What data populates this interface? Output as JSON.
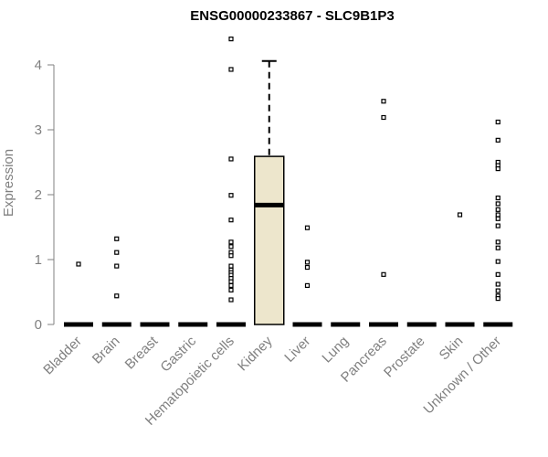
{
  "chart_data": {
    "type": "box",
    "title": "ENSG00000233867 - SLC9B1P3",
    "xlabel": "",
    "ylabel": "Expression",
    "ylim": [
      0,
      4.5
    ],
    "yticks": [
      0,
      1,
      2,
      3,
      4
    ],
    "grid": false,
    "categories": [
      "Bladder",
      "Brain",
      "Breast",
      "Gastric",
      "Hematopoietic cells",
      "Kidney",
      "Liver",
      "Lung",
      "Pancreas",
      "Prostate",
      "Skin",
      "Unknown / Other"
    ],
    "boxes": [
      {
        "category": "Bladder",
        "q1": 0,
        "median": 0,
        "q3": 0,
        "whisker_low": 0,
        "whisker_high": 0,
        "outliers": [
          0.93
        ]
      },
      {
        "category": "Brain",
        "q1": 0,
        "median": 0,
        "q3": 0,
        "whisker_low": 0,
        "whisker_high": 0,
        "outliers": [
          1.32,
          1.11,
          0.9,
          0.44
        ]
      },
      {
        "category": "Breast",
        "q1": 0,
        "median": 0,
        "q3": 0,
        "whisker_low": 0,
        "whisker_high": 0,
        "outliers": []
      },
      {
        "category": "Gastric",
        "q1": 0,
        "median": 0,
        "q3": 0,
        "whisker_low": 0,
        "whisker_high": 0,
        "outliers": []
      },
      {
        "category": "Hematopoietic cells",
        "q1": 0,
        "median": 0,
        "q3": 0,
        "whisker_low": 0,
        "whisker_high": 0,
        "outliers": [
          4.4,
          3.93,
          2.55,
          1.99,
          1.61,
          1.27,
          1.2,
          1.11,
          1.06,
          0.9,
          0.84,
          0.8,
          0.76,
          0.71,
          0.66,
          0.6,
          0.53,
          0.38
        ]
      },
      {
        "category": "Kidney",
        "q1": 0,
        "median": 1.84,
        "q3": 2.59,
        "whisker_low": 0,
        "whisker_high": 4.06,
        "outliers": []
      },
      {
        "category": "Liver",
        "q1": 0,
        "median": 0,
        "q3": 0,
        "whisker_low": 0,
        "whisker_high": 0,
        "outliers": [
          1.49,
          0.96,
          0.88,
          0.6
        ]
      },
      {
        "category": "Lung",
        "q1": 0,
        "median": 0,
        "q3": 0,
        "whisker_low": 0,
        "whisker_high": 0,
        "outliers": []
      },
      {
        "category": "Pancreas",
        "q1": 0,
        "median": 0,
        "q3": 0,
        "whisker_low": 0,
        "whisker_high": 0,
        "outliers": [
          3.44,
          3.19,
          0.77
        ]
      },
      {
        "category": "Prostate",
        "q1": 0,
        "median": 0,
        "q3": 0,
        "whisker_low": 0,
        "whisker_high": 0,
        "outliers": []
      },
      {
        "category": "Skin",
        "q1": 0,
        "median": 0,
        "q3": 0,
        "whisker_low": 0,
        "whisker_high": 0,
        "outliers": [
          1.69
        ]
      },
      {
        "category": "Unknown / Other",
        "q1": 0,
        "median": 0,
        "q3": 0,
        "whisker_low": 0,
        "whisker_high": 0,
        "outliers": [
          3.12,
          2.84,
          2.5,
          2.45,
          2.4,
          1.95,
          1.86,
          1.77,
          1.69,
          1.63,
          1.52,
          1.27,
          1.18,
          0.97,
          0.77,
          0.62,
          0.52,
          0.44,
          0.4
        ]
      }
    ],
    "colors": {
      "box_fill_kidney": "#ede6cc",
      "outline": "#000000",
      "axis_text": "#808080"
    }
  }
}
